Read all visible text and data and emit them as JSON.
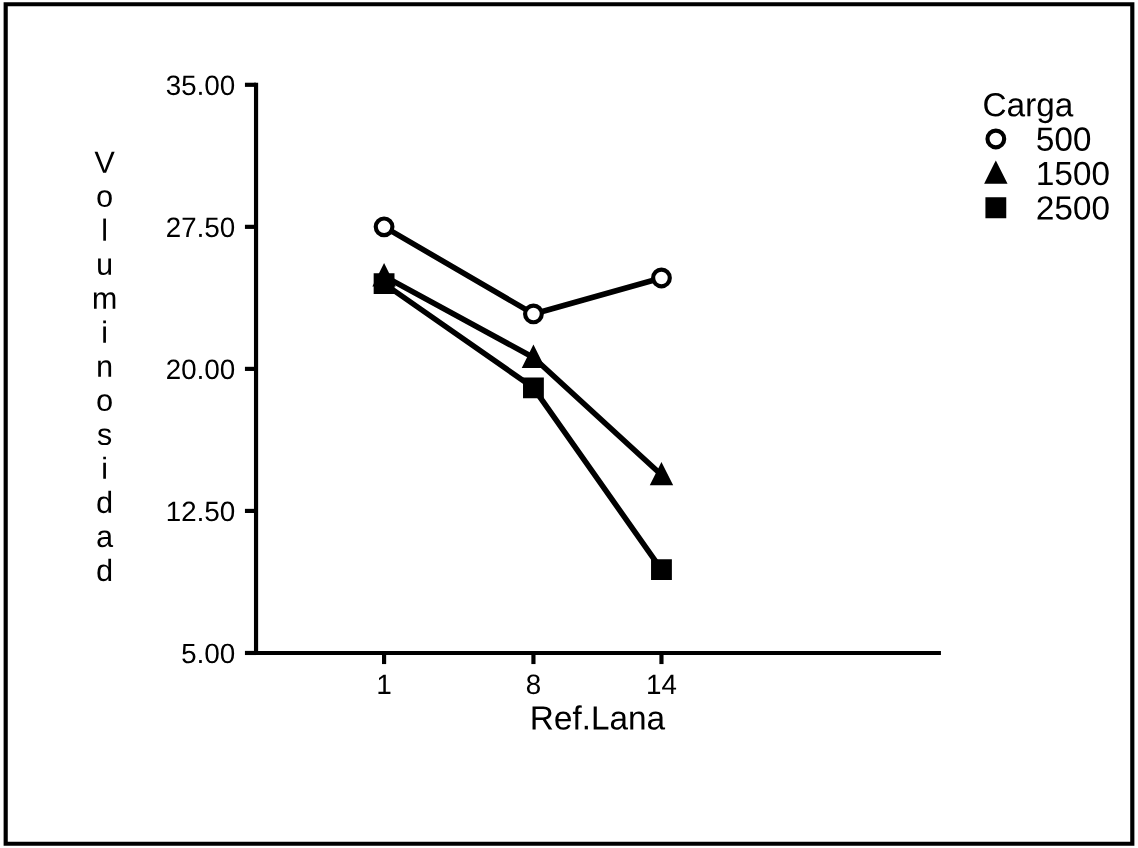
{
  "chart_data": {
    "type": "line",
    "xlabel": "Ref.Lana",
    "ylabel": "Voluminosidad",
    "legend_title": "Carga",
    "legend": "top right",
    "grid": false,
    "x": [
      1,
      8,
      14
    ],
    "xlim": [
      -5,
      27
    ],
    "xticks": [
      1,
      8,
      14
    ],
    "ylim": [
      5,
      35
    ],
    "yticks": [
      {
        "value": 5,
        "label": "5.00"
      },
      {
        "value": 12.5,
        "label": "12.50"
      },
      {
        "value": 20,
        "label": "20.00"
      },
      {
        "value": 27.5,
        "label": "27.50"
      },
      {
        "value": 35,
        "label": "35.00"
      }
    ],
    "series": [
      {
        "name": "500",
        "color": "#000000",
        "marker": "circle",
        "values": [
          27.5,
          22.9,
          24.8
        ]
      },
      {
        "name": "1500",
        "color": "#000000",
        "marker": "triangle",
        "values": [
          24.9,
          20.6,
          14.4
        ]
      },
      {
        "name": "2500",
        "color": "#000000",
        "marker": "square",
        "values": [
          24.5,
          19.0,
          9.4
        ]
      }
    ]
  }
}
